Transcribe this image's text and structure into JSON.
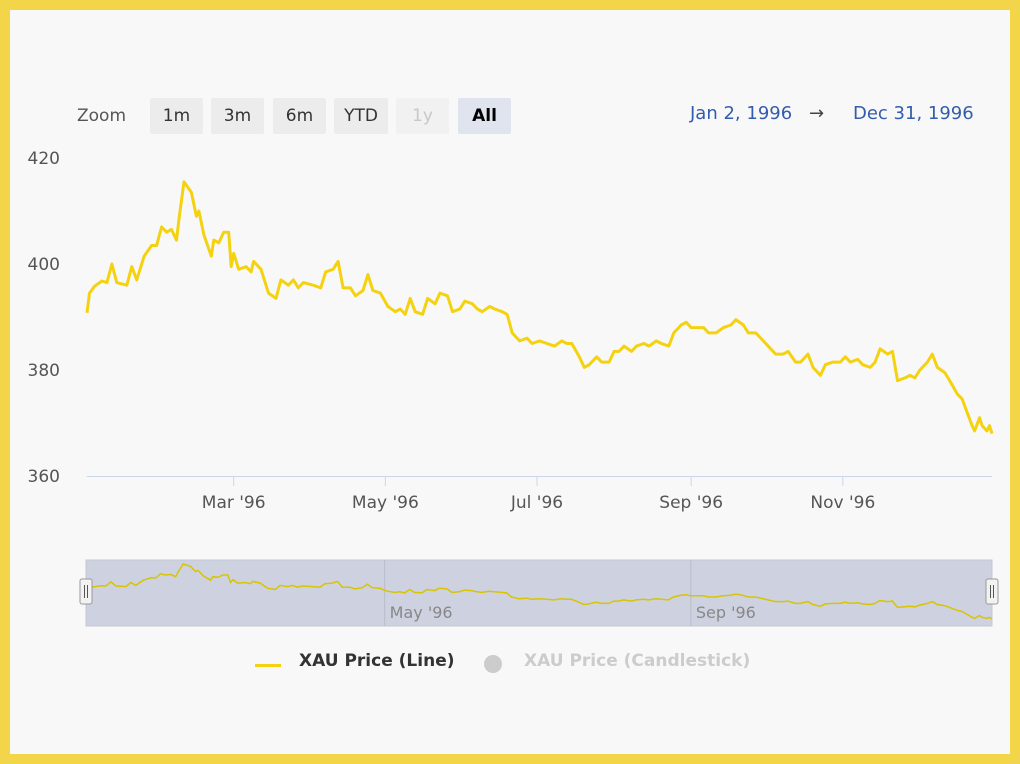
{
  "colors": {
    "series_line": "#f5d20f",
    "navigator_fill": "#ced2e0",
    "link_blue": "#335cad",
    "hidden_gray": "#cccccc"
  },
  "rangeSelector": {
    "zoom_label": "Zoom",
    "buttons": [
      {
        "label": "1m",
        "state": "normal"
      },
      {
        "label": "3m",
        "state": "normal"
      },
      {
        "label": "6m",
        "state": "normal"
      },
      {
        "label": "YTD",
        "state": "normal"
      },
      {
        "label": "1y",
        "state": "disabled"
      },
      {
        "label": "All",
        "state": "active"
      }
    ],
    "from": "Jan 2, 1996",
    "arrow": "→",
    "to": "Dec 31, 1996"
  },
  "chart_data": {
    "type": "line",
    "title": "",
    "xlabel": "",
    "ylabel": "",
    "x_range": [
      "1996-01-02",
      "1996-12-31"
    ],
    "ylim": [
      360,
      420
    ],
    "yticks": [
      "360",
      "380",
      "400",
      "420"
    ],
    "xticks": [
      {
        "label": "Mar '96",
        "date": "1996-03-01"
      },
      {
        "label": "May '96",
        "date": "1996-05-01"
      },
      {
        "label": "Jul '96",
        "date": "1996-07-01"
      },
      {
        "label": "Sep '96",
        "date": "1996-09-01"
      },
      {
        "label": "Nov '96",
        "date": "1996-11-01"
      }
    ],
    "grid": false,
    "legend_position": "bottom-center",
    "series": [
      {
        "name": "XAU Price (Line)",
        "visible": true,
        "points": [
          [
            "1996-01-02",
            390.8
          ],
          [
            "1996-01-03",
            394.5
          ],
          [
            "1996-01-05",
            395.8
          ],
          [
            "1996-01-08",
            396.8
          ],
          [
            "1996-01-10",
            396.5
          ],
          [
            "1996-01-12",
            400.0
          ],
          [
            "1996-01-14",
            396.5
          ],
          [
            "1996-01-18",
            396.0
          ],
          [
            "1996-01-20",
            399.5
          ],
          [
            "1996-01-22",
            397.0
          ],
          [
            "1996-01-25",
            401.5
          ],
          [
            "1996-01-28",
            403.5
          ],
          [
            "1996-01-30",
            403.5
          ],
          [
            "1996-02-01",
            407.0
          ],
          [
            "1996-02-03",
            406.0
          ],
          [
            "1996-02-05",
            406.5
          ],
          [
            "1996-02-07",
            404.5
          ],
          [
            "1996-02-08",
            408.5
          ],
          [
            "1996-02-10",
            415.5
          ],
          [
            "1996-02-13",
            413.5
          ],
          [
            "1996-02-15",
            409.0
          ],
          [
            "1996-02-16",
            410.0
          ],
          [
            "1996-02-18",
            405.5
          ],
          [
            "1996-02-21",
            401.5
          ],
          [
            "1996-02-22",
            404.5
          ],
          [
            "1996-02-24",
            404.0
          ],
          [
            "1996-02-26",
            406.0
          ],
          [
            "1996-02-28",
            406.0
          ],
          [
            "1996-02-29",
            399.5
          ],
          [
            "1996-03-01",
            402.0
          ],
          [
            "1996-03-03",
            399.0
          ],
          [
            "1996-03-06",
            399.5
          ],
          [
            "1996-03-08",
            398.5
          ],
          [
            "1996-03-09",
            400.5
          ],
          [
            "1996-03-12",
            399.0
          ],
          [
            "1996-03-15",
            394.5
          ],
          [
            "1996-03-18",
            393.5
          ],
          [
            "1996-03-20",
            397.0
          ],
          [
            "1996-03-23",
            396.0
          ],
          [
            "1996-03-25",
            397.0
          ],
          [
            "1996-03-27",
            395.5
          ],
          [
            "1996-03-29",
            396.5
          ],
          [
            "1996-04-02",
            396.0
          ],
          [
            "1996-04-05",
            395.5
          ],
          [
            "1996-04-07",
            398.5
          ],
          [
            "1996-04-10",
            399.0
          ],
          [
            "1996-04-12",
            400.5
          ],
          [
            "1996-04-14",
            395.5
          ],
          [
            "1996-04-17",
            395.5
          ],
          [
            "1996-04-19",
            394.0
          ],
          [
            "1996-04-22",
            395.0
          ],
          [
            "1996-04-24",
            398.0
          ],
          [
            "1996-04-26",
            395.0
          ],
          [
            "1996-04-29",
            394.5
          ],
          [
            "1996-05-02",
            392.0
          ],
          [
            "1996-05-05",
            391.0
          ],
          [
            "1996-05-07",
            391.5
          ],
          [
            "1996-05-09",
            390.5
          ],
          [
            "1996-05-11",
            393.5
          ],
          [
            "1996-05-13",
            391.0
          ],
          [
            "1996-05-16",
            390.5
          ],
          [
            "1996-05-18",
            393.5
          ],
          [
            "1996-05-21",
            392.5
          ],
          [
            "1996-05-23",
            394.5
          ],
          [
            "1996-05-26",
            394.0
          ],
          [
            "1996-05-28",
            391.0
          ],
          [
            "1996-05-31",
            391.5
          ],
          [
            "1996-06-02",
            393.0
          ],
          [
            "1996-06-05",
            392.5
          ],
          [
            "1996-06-07",
            391.5
          ],
          [
            "1996-06-09",
            391.0
          ],
          [
            "1996-06-12",
            392.0
          ],
          [
            "1996-06-14",
            391.5
          ],
          [
            "1996-06-17",
            391.0
          ],
          [
            "1996-06-19",
            390.5
          ],
          [
            "1996-06-21",
            387.0
          ],
          [
            "1996-06-24",
            385.5
          ],
          [
            "1996-06-27",
            386.0
          ],
          [
            "1996-06-29",
            385.0
          ],
          [
            "1996-07-02",
            385.5
          ],
          [
            "1996-07-05",
            385.0
          ],
          [
            "1996-07-08",
            384.5
          ],
          [
            "1996-07-11",
            385.5
          ],
          [
            "1996-07-13",
            385.0
          ],
          [
            "1996-07-15",
            385.0
          ],
          [
            "1996-07-18",
            382.5
          ],
          [
            "1996-07-20",
            380.5
          ],
          [
            "1996-07-22",
            381.0
          ],
          [
            "1996-07-25",
            382.5
          ],
          [
            "1996-07-27",
            381.5
          ],
          [
            "1996-07-30",
            381.5
          ],
          [
            "1996-08-01",
            383.5
          ],
          [
            "1996-08-03",
            383.5
          ],
          [
            "1996-08-05",
            384.5
          ],
          [
            "1996-08-08",
            383.5
          ],
          [
            "1996-08-10",
            384.5
          ],
          [
            "1996-08-13",
            385.0
          ],
          [
            "1996-08-15",
            384.5
          ],
          [
            "1996-08-18",
            385.5
          ],
          [
            "1996-08-20",
            385.0
          ],
          [
            "1996-08-23",
            384.5
          ],
          [
            "1996-08-25",
            387.0
          ],
          [
            "1996-08-28",
            388.5
          ],
          [
            "1996-08-30",
            389.0
          ],
          [
            "1996-09-01",
            388.0
          ],
          [
            "1996-09-04",
            388.0
          ],
          [
            "1996-09-06",
            388.0
          ],
          [
            "1996-09-08",
            387.0
          ],
          [
            "1996-09-11",
            387.0
          ],
          [
            "1996-09-14",
            388.0
          ],
          [
            "1996-09-17",
            388.5
          ],
          [
            "1996-09-19",
            389.5
          ],
          [
            "1996-09-22",
            388.5
          ],
          [
            "1996-09-24",
            387.0
          ],
          [
            "1996-09-27",
            387.0
          ],
          [
            "1996-09-30",
            385.5
          ],
          [
            "1996-10-03",
            384.0
          ],
          [
            "1996-10-05",
            383.0
          ],
          [
            "1996-10-08",
            383.0
          ],
          [
            "1996-10-10",
            383.5
          ],
          [
            "1996-10-13",
            381.5
          ],
          [
            "1996-10-15",
            381.5
          ],
          [
            "1996-10-18",
            383.0
          ],
          [
            "1996-10-20",
            380.5
          ],
          [
            "1996-10-23",
            379.0
          ],
          [
            "1996-10-25",
            381.0
          ],
          [
            "1996-10-28",
            381.5
          ],
          [
            "1996-10-31",
            381.5
          ],
          [
            "1996-11-02",
            382.5
          ],
          [
            "1996-11-04",
            381.5
          ],
          [
            "1996-11-07",
            382.0
          ],
          [
            "1996-11-09",
            381.0
          ],
          [
            "1996-11-12",
            380.5
          ],
          [
            "1996-11-14",
            381.5
          ],
          [
            "1996-11-16",
            384.0
          ],
          [
            "1996-11-19",
            383.0
          ],
          [
            "1996-11-21",
            383.5
          ],
          [
            "1996-11-23",
            378.0
          ],
          [
            "1996-11-26",
            378.5
          ],
          [
            "1996-11-28",
            379.0
          ],
          [
            "1996-11-30",
            378.5
          ],
          [
            "1996-12-02",
            380.0
          ],
          [
            "1996-12-05",
            381.5
          ],
          [
            "1996-12-07",
            383.0
          ],
          [
            "1996-12-09",
            380.5
          ],
          [
            "1996-12-12",
            379.5
          ],
          [
            "1996-12-14",
            378.0
          ],
          [
            "1996-12-17",
            375.5
          ],
          [
            "1996-12-19",
            374.5
          ],
          [
            "1996-12-21",
            372.0
          ],
          [
            "1996-12-23",
            369.5
          ],
          [
            "1996-12-24",
            368.5
          ],
          [
            "1996-12-26",
            371.0
          ],
          [
            "1996-12-27",
            369.5
          ],
          [
            "1996-12-28",
            369.0
          ],
          [
            "1996-12-29",
            368.5
          ],
          [
            "1996-12-30",
            369.5
          ],
          [
            "1996-12-31",
            368.0
          ]
        ]
      },
      {
        "name": "XAU Price (Candlestick)",
        "visible": false,
        "points": []
      }
    ],
    "navigator": {
      "xticks": [
        {
          "label": "May '96",
          "date": "1996-05-01"
        },
        {
          "label": "Sep '96",
          "date": "1996-09-01"
        }
      ]
    }
  }
}
